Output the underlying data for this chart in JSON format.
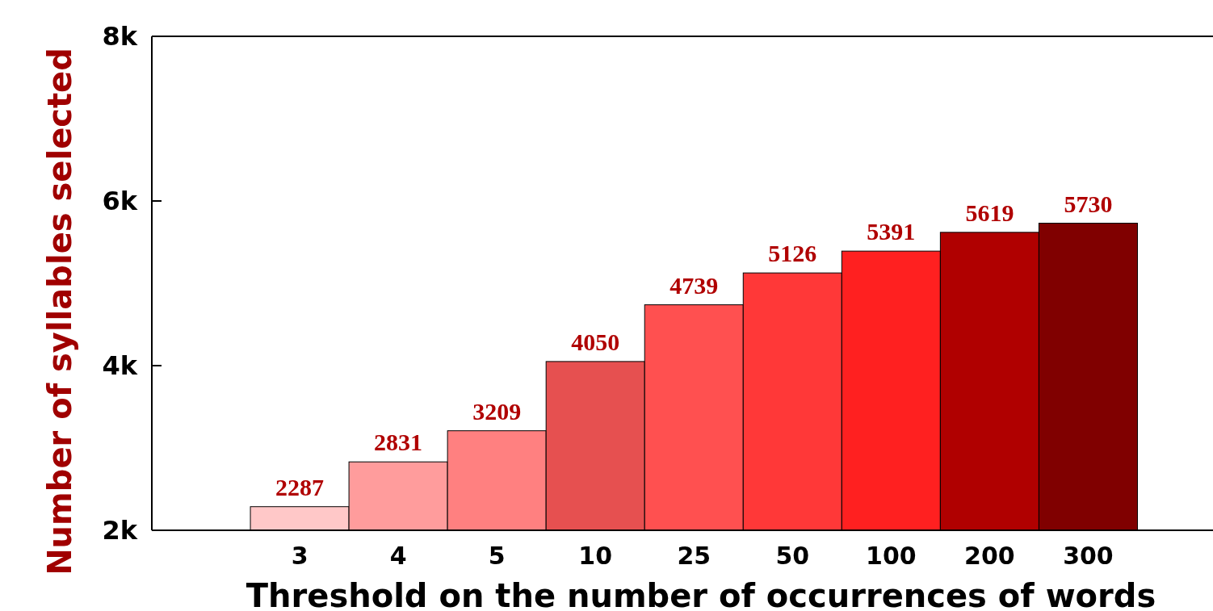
{
  "chart_data": {
    "type": "bar",
    "xlabel": "Threshold on the number of occurrences of words",
    "ylabel": "Number of syllables selected",
    "categories": [
      "3",
      "4",
      "5",
      "10",
      "25",
      "50",
      "100",
      "200",
      "300"
    ],
    "values": [
      2287,
      2831,
      3209,
      4050,
      4739,
      5126,
      5391,
      5619,
      5730
    ],
    "colors": [
      "#ffc8c8",
      "#ff9c9c",
      "#ff8080",
      "#e65050",
      "#ff5050",
      "#ff3838",
      "#ff2020",
      "#b00000",
      "#800000"
    ],
    "ylim": [
      2000,
      8000
    ],
    "yticks": [
      {
        "value": 2000,
        "label": "2k"
      },
      {
        "value": 4000,
        "label": "4k"
      },
      {
        "value": 6000,
        "label": "6k"
      },
      {
        "value": 8000,
        "label": "8k"
      }
    ],
    "data_labels": true,
    "grid": false
  }
}
